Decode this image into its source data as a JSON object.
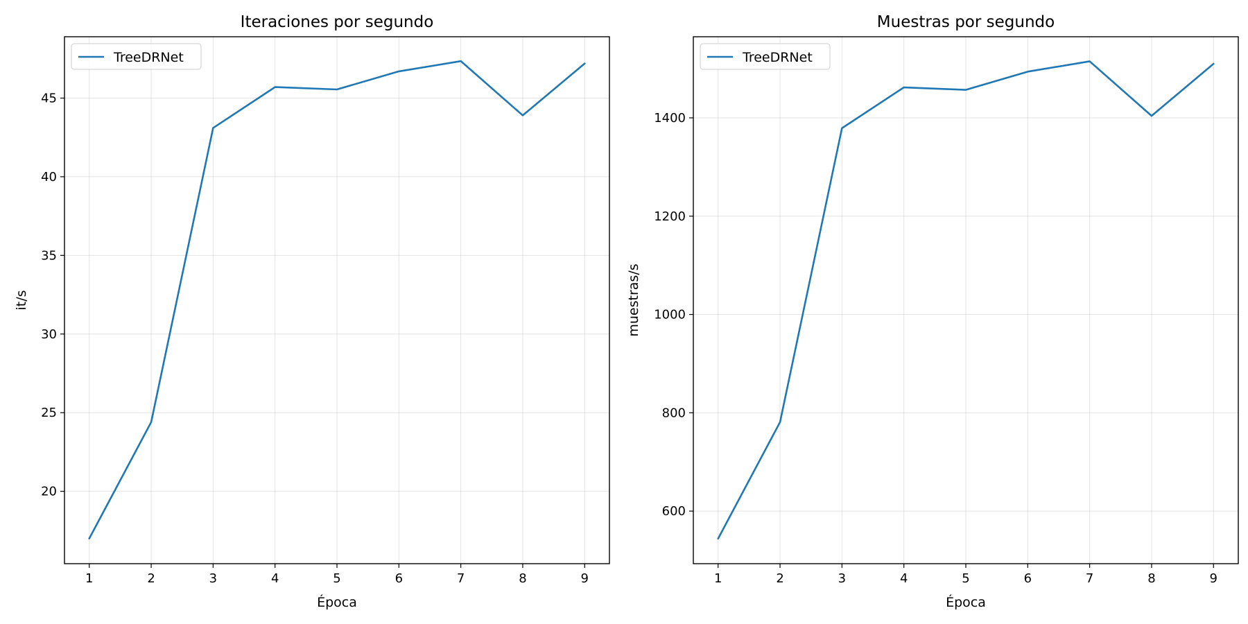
{
  "chart_data": [
    {
      "type": "line",
      "title": "Iteraciones por segundo",
      "xlabel": "Época",
      "ylabel": "it/s",
      "x": [
        1,
        2,
        3,
        4,
        5,
        6,
        7,
        8,
        9
      ],
      "xticks": [
        "1",
        "2",
        "3",
        "4",
        "5",
        "6",
        "7",
        "8",
        "9"
      ],
      "xlim": [
        0.6,
        9.4
      ],
      "ylim": [
        15.4,
        48.9
      ],
      "yticks": [
        20,
        25,
        30,
        35,
        40,
        45
      ],
      "grid": true,
      "legend": "upper-left",
      "series": [
        {
          "name": "TreeDRNet",
          "color": "#1f77b4",
          "values": [
            17.0,
            24.4,
            43.1,
            45.7,
            45.55,
            46.7,
            47.35,
            43.9,
            47.2
          ]
        }
      ]
    },
    {
      "type": "line",
      "title": "Muestras por segundo",
      "xlabel": "Época",
      "ylabel": "muestras/s",
      "x": [
        1,
        2,
        3,
        4,
        5,
        6,
        7,
        8,
        9
      ],
      "xticks": [
        "1",
        "2",
        "3",
        "4",
        "5",
        "6",
        "7",
        "8",
        "9"
      ],
      "xlim": [
        0.6,
        9.4
      ],
      "ylim": [
        493,
        1565
      ],
      "yticks": [
        600,
        800,
        1000,
        1200,
        1400
      ],
      "grid": true,
      "legend": "upper-left",
      "series": [
        {
          "name": "TreeDRNet",
          "color": "#1f77b4",
          "values": [
            544,
            781,
            1379,
            1462,
            1457,
            1494,
            1515,
            1404,
            1510
          ]
        }
      ]
    }
  ]
}
